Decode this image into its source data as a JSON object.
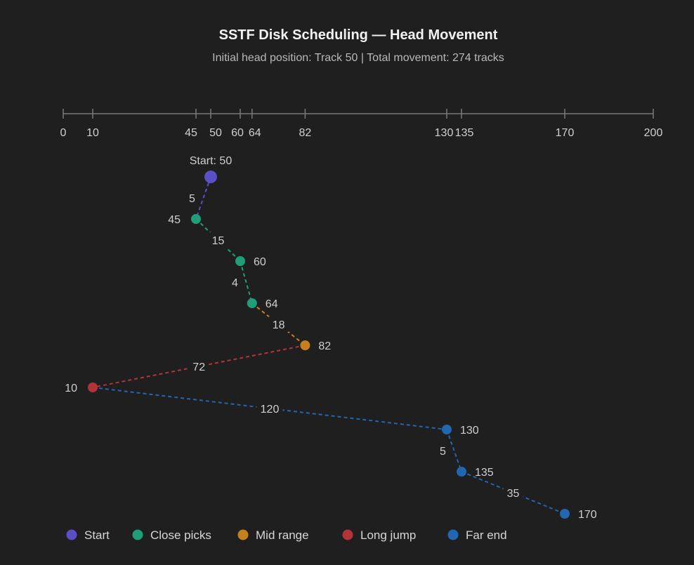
{
  "chart_data": {
    "type": "scatter",
    "title": "SSTF Disk Scheduling — Head Movement",
    "subtitle": "Initial head position: Track 50 | Total movement: 274 tracks",
    "xlim": [
      0,
      200
    ],
    "x_ticks": [
      0,
      10,
      45,
      50,
      60,
      64,
      82,
      130,
      135,
      170,
      200
    ],
    "start_label": "Start: 50",
    "points": [
      {
        "track": 50,
        "category": "start"
      },
      {
        "track": 45,
        "category": "close"
      },
      {
        "track": 60,
        "category": "close"
      },
      {
        "track": 64,
        "category": "close"
      },
      {
        "track": 82,
        "category": "mid"
      },
      {
        "track": 10,
        "category": "long"
      },
      {
        "track": 130,
        "category": "far"
      },
      {
        "track": 135,
        "category": "far"
      },
      {
        "track": 170,
        "category": "far"
      }
    ],
    "moves": [
      {
        "distance": 5,
        "category": "start"
      },
      {
        "distance": 15,
        "category": "close"
      },
      {
        "distance": 4,
        "category": "close"
      },
      {
        "distance": 18,
        "category": "mid"
      },
      {
        "distance": 72,
        "category": "long"
      },
      {
        "distance": 120,
        "category": "far"
      },
      {
        "distance": 5,
        "category": "far"
      },
      {
        "distance": 35,
        "category": "far"
      }
    ],
    "legend": [
      {
        "key": "start",
        "label": "Start",
        "color": "#5b4fc4"
      },
      {
        "key": "close",
        "label": "Close picks",
        "color": "#1f9e78"
      },
      {
        "key": "mid",
        "label": "Mid range",
        "color": "#c57f1c"
      },
      {
        "key": "long",
        "label": "Long jump",
        "color": "#b23438"
      },
      {
        "key": "far",
        "label": "Far end",
        "color": "#2066b0"
      }
    ]
  }
}
